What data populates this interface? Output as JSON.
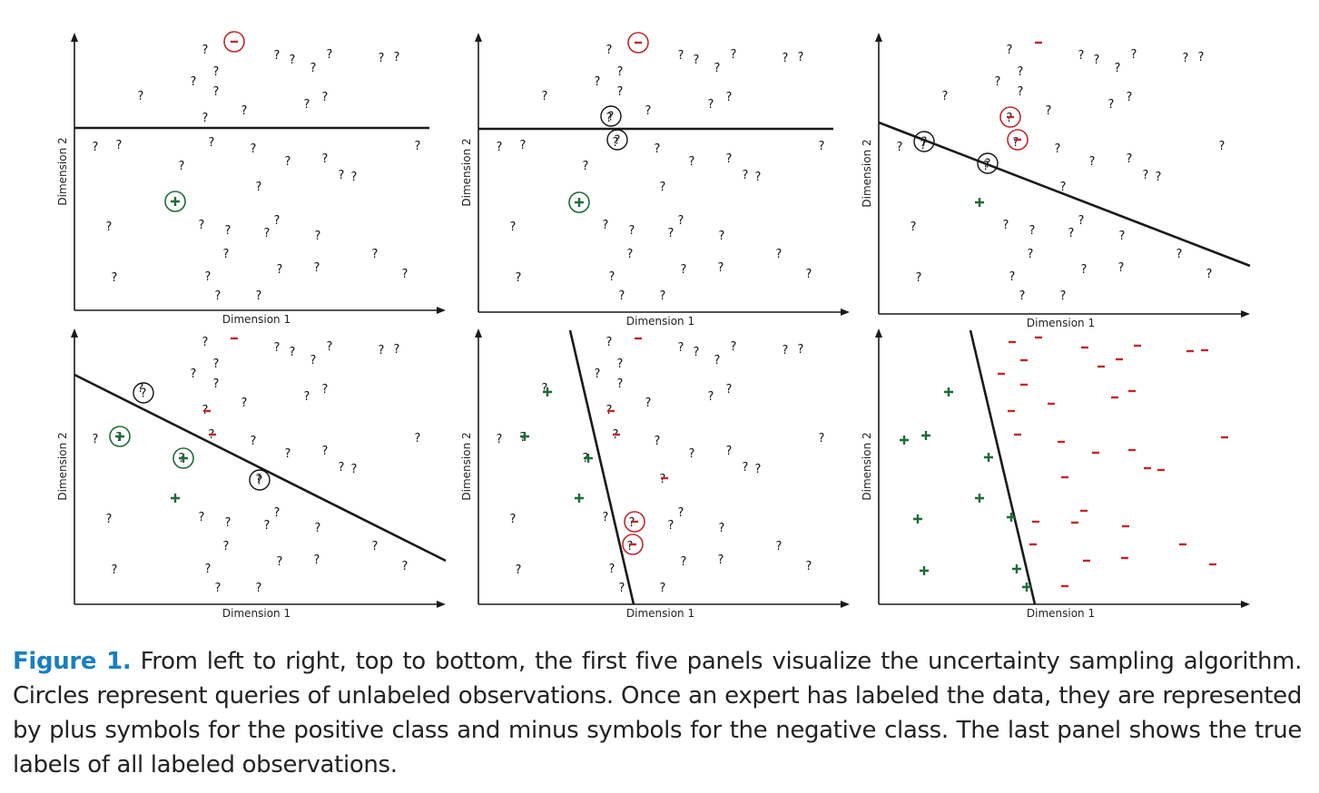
{
  "figure": {
    "x_axis_label": "Dimension 1",
    "y_axis_label": "Dimension 2",
    "colors": {
      "negative": "#c0282d",
      "positive": "#1e6b3a",
      "axis": "#1a1a1a",
      "caption_label": "#1a7fbf"
    },
    "symbols": {
      "unlabeled": "?",
      "positive": "+",
      "negative": "-"
    }
  },
  "caption": {
    "label": "Figure 1.",
    "text": "From left to right, top to bottom, the first five panels visualize the uncertainty sampling algorithm. Circles represent queries of unlabeled observations. Once an expert has labeled the data, they are represented by plus symbols for the positive class and minus symbols for the negative class. The last panel shows the true labels of all labeled observations."
  }
}
